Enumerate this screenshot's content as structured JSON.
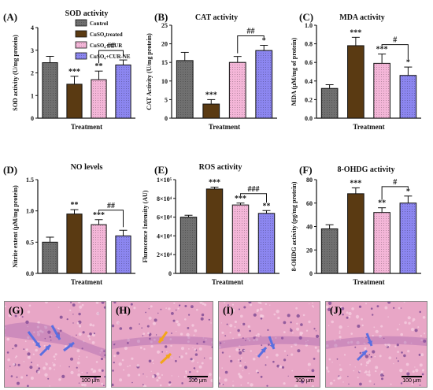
{
  "legend": {
    "items": [
      {
        "label": "Control",
        "color": "#707070"
      },
      {
        "label": "CuSO₄treated",
        "color": "#5a3a12"
      },
      {
        "label": "CuSO₄+ CUR",
        "color": "#f4b6d8"
      },
      {
        "label": "CuSO₄+CUR-NE",
        "color": "#8c86f0"
      }
    ]
  },
  "chart_data": [
    {
      "panel": "(A)",
      "type": "bar",
      "title": "SOD activity",
      "xlabel": "Treatment",
      "ylabel": "SOD activity (U/mg protein)",
      "ylim": [
        0,
        4
      ],
      "ticks": [
        "0",
        "1",
        "2",
        "3",
        "4"
      ],
      "values": [
        2.45,
        1.5,
        1.7,
        2.35
      ],
      "errors": [
        0.28,
        0.35,
        0.38,
        0.22
      ],
      "stars": [
        "",
        "***",
        "**",
        ""
      ],
      "bracket": {
        "from": 2,
        "to": 3,
        "label": "##"
      }
    },
    {
      "panel": "(B)",
      "type": "bar",
      "title": "CAT activity",
      "xlabel": "Treatment",
      "ylabel": "CAT Activity (U/mg protein)",
      "ylim": [
        0,
        25
      ],
      "ticks": [
        "0",
        "5",
        "10",
        "15",
        "20",
        "25"
      ],
      "values": [
        15.5,
        3.8,
        15.0,
        18.2
      ],
      "errors": [
        2.2,
        1.2,
        1.6,
        1.4
      ],
      "stars": [
        "",
        "***",
        "",
        "*"
      ],
      "bracket": {
        "from": 2,
        "to": 3,
        "label": "##"
      }
    },
    {
      "panel": "(C)",
      "type": "bar",
      "title": "MDA activity",
      "xlabel": "Treatment",
      "ylabel": "MDA (μM/mg of protein)",
      "ylim": [
        0,
        1.0
      ],
      "ticks": [
        "0.0",
        "0.2",
        "0.4",
        "0.6",
        "0.8",
        "1.0"
      ],
      "values": [
        0.32,
        0.78,
        0.59,
        0.46
      ],
      "errors": [
        0.04,
        0.09,
        0.1,
        0.09
      ],
      "stars": [
        "",
        "***",
        "***",
        "*"
      ],
      "bracket": {
        "from": 2,
        "to": 3,
        "label": "#"
      }
    },
    {
      "panel": "(D)",
      "type": "bar",
      "title": "NO levels",
      "xlabel": "Treatment",
      "ylabel": "Nitrite extent (μM/mg protein)",
      "ylim": [
        0,
        1.5
      ],
      "ticks": [
        "0.0",
        "0.5",
        "1.0",
        "1.5"
      ],
      "values": [
        0.5,
        0.95,
        0.78,
        0.6
      ],
      "errors": [
        0.08,
        0.07,
        0.08,
        0.09
      ],
      "stars": [
        "",
        "**",
        "***",
        ""
      ],
      "bracket": {
        "from": 2,
        "to": 3,
        "label": "##"
      }
    },
    {
      "panel": "(E)",
      "type": "bar",
      "title": "ROS activity",
      "xlabel": "Treatment",
      "ylabel": "Fluroscence Intensity (AU)",
      "ylim": [
        0,
        100000
      ],
      "ticks": [
        "0",
        "2×10⁴",
        "4×10⁴",
        "6×10⁴",
        "8×10⁴",
        "1×10⁵"
      ],
      "values": [
        60000,
        90000,
        73000,
        64000
      ],
      "errors": [
        2000,
        2000,
        2000,
        3000
      ],
      "stars": [
        "",
        "***",
        "***",
        "**"
      ],
      "bracket": {
        "from": 2,
        "to": 3,
        "label": "###"
      }
    },
    {
      "panel": "(F)",
      "type": "bar",
      "title": "8-OHDG activity",
      "xlabel": "Treatment",
      "ylabel": "8-OHDG activity (pg/mg protein)",
      "ylim": [
        0,
        80
      ],
      "ticks": [
        "0",
        "20",
        "40",
        "60",
        "80"
      ],
      "values": [
        38,
        68,
        52,
        60
      ],
      "errors": [
        3.5,
        5,
        4,
        6
      ],
      "stars": [
        "",
        "***",
        "**",
        "*"
      ],
      "bracket": {
        "from": 2,
        "to": 3,
        "label": "#"
      }
    }
  ],
  "micrographs": [
    {
      "label": "(G)",
      "scale": "100 μm",
      "arrow_color": "#5b6fe0"
    },
    {
      "label": "(H)",
      "scale": "100 μm",
      "arrow_color": "#f2a51a"
    },
    {
      "label": "(I)",
      "scale": "100 μm",
      "arrow_color": "#5b6fe0"
    },
    {
      "label": "(J)",
      "scale": "100 μm",
      "arrow_color": "#5b6fe0"
    }
  ]
}
